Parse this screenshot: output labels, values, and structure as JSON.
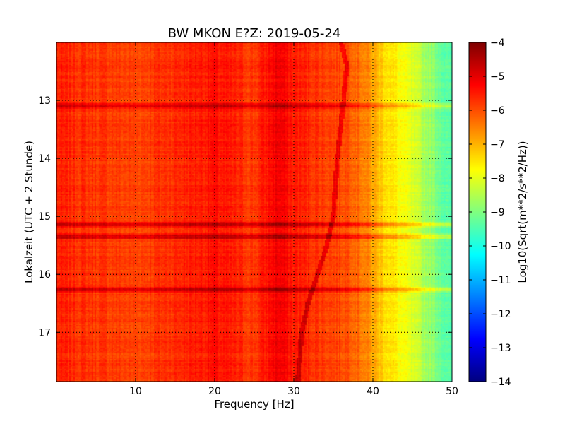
{
  "chart_data": {
    "type": "heatmap",
    "title": "BW MKON E?Z: 2019-05-24",
    "xlabel": "Frequency [Hz]",
    "ylabel": "Lokalzeit (UTC + 2 Stunde)",
    "xlim": [
      0,
      50
    ],
    "ylim": [
      17.85,
      12.0
    ],
    "x_ticks": [
      10,
      20,
      30,
      40,
      50
    ],
    "y_ticks": [
      13,
      14,
      15,
      16,
      17
    ],
    "grid": true,
    "colorbar": {
      "label": "Log10(Sqrt(m**2/s**2/Hz))",
      "min": -14,
      "max": -4,
      "ticks": [
        -4,
        -5,
        -6,
        -7,
        -8,
        -9,
        -10,
        -11,
        -12,
        -13,
        -14
      ],
      "colormap": "jet"
    },
    "field": {
      "base_level_by_frequency": [
        {
          "f": 0,
          "v": -5.6
        },
        {
          "f": 10,
          "v": -5.9
        },
        {
          "f": 20,
          "v": -5.4
        },
        {
          "f": 25,
          "v": -5.8
        },
        {
          "f": 28,
          "v": -5.1
        },
        {
          "f": 30,
          "v": -5.5
        },
        {
          "f": 35,
          "v": -5.9
        },
        {
          "f": 37,
          "v": -6.0
        },
        {
          "f": 39,
          "v": -6.5
        },
        {
          "f": 41,
          "v": -7.2
        },
        {
          "f": 44,
          "v": -7.9
        },
        {
          "f": 47,
          "v": -8.7
        },
        {
          "f": 50,
          "v": -9.6
        }
      ],
      "high_noise_bands_hours": [
        13.1,
        15.15,
        15.35,
        16.27
      ],
      "drifting_line": [
        {
          "t": 12.0,
          "f": 36.0
        },
        {
          "t": 12.4,
          "f": 36.7
        },
        {
          "t": 13.0,
          "f": 36.3
        },
        {
          "t": 14.0,
          "f": 35.5
        },
        {
          "t": 15.0,
          "f": 35.0
        },
        {
          "t": 15.6,
          "f": 34.0
        },
        {
          "t": 16.0,
          "f": 33.0
        },
        {
          "t": 16.5,
          "f": 31.8
        },
        {
          "t": 17.0,
          "f": 31.0
        },
        {
          "t": 17.85,
          "f": 30.5
        }
      ]
    }
  }
}
